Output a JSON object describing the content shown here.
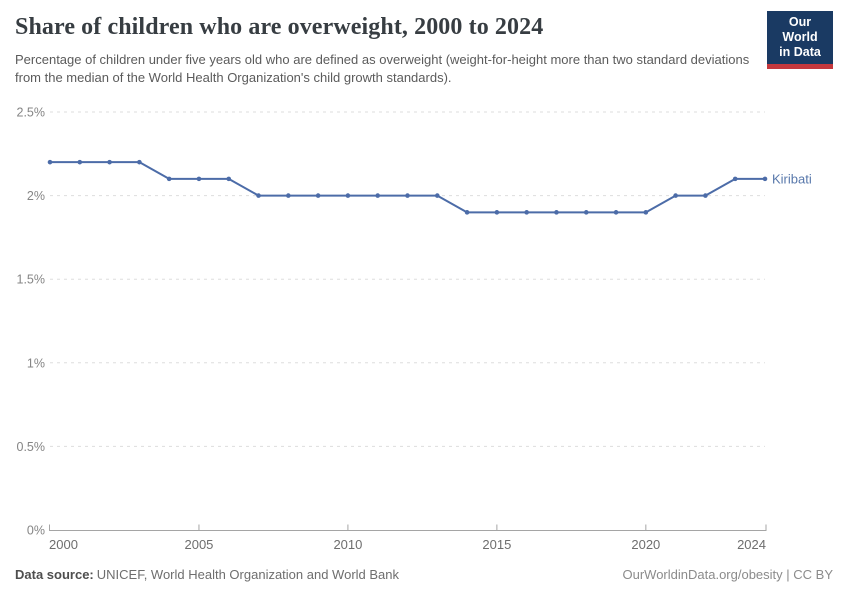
{
  "header": {
    "title": "Share of children who are overweight, 2000 to 2024",
    "subtitle": "Percentage of children under five years old who are defined as overweight (weight-for-height more than two standard deviations from the median of the World Health Organization's child growth standards).",
    "logo": {
      "line1": "Our World",
      "line2": "in Data"
    }
  },
  "chart_data": {
    "type": "line",
    "title": "Share of children who are overweight, 2000 to 2024",
    "xlabel": "",
    "ylabel": "",
    "x": [
      2000,
      2001,
      2002,
      2003,
      2004,
      2005,
      2006,
      2007,
      2008,
      2009,
      2010,
      2011,
      2012,
      2013,
      2014,
      2015,
      2016,
      2017,
      2018,
      2019,
      2020,
      2021,
      2022,
      2023,
      2024
    ],
    "series": [
      {
        "name": "Kiribati",
        "color": "#4c6ca8",
        "values": [
          2.2,
          2.2,
          2.2,
          2.2,
          2.1,
          2.1,
          2.1,
          2.0,
          2.0,
          2.0,
          2.0,
          2.0,
          2.0,
          2.0,
          1.9,
          1.9,
          1.9,
          1.9,
          1.9,
          1.9,
          1.9,
          2.0,
          2.0,
          2.1,
          2.1
        ]
      }
    ],
    "xlim": [
      2000,
      2024
    ],
    "ylim": [
      0,
      2.5
    ],
    "x_ticks": [
      {
        "v": 2000,
        "label": "2000"
      },
      {
        "v": 2005,
        "label": "2005"
      },
      {
        "v": 2010,
        "label": "2010"
      },
      {
        "v": 2015,
        "label": "2015"
      },
      {
        "v": 2020,
        "label": "2020"
      },
      {
        "v": 2024,
        "label": "2024"
      }
    ],
    "y_ticks": [
      {
        "v": 0,
        "label": "0%"
      },
      {
        "v": 0.5,
        "label": "0.5%"
      },
      {
        "v": 1,
        "label": "1%"
      },
      {
        "v": 1.5,
        "label": "1.5%"
      },
      {
        "v": 2,
        "label": "2%"
      },
      {
        "v": 2.5,
        "label": "2.5%"
      }
    ],
    "grid": "horizontal-dashed",
    "legend_position": "line-end-label"
  },
  "colors": {
    "line": "#4c6ca8",
    "gridline": "#dddddd",
    "axis": "#a5a5a5",
    "y_tick_label": "#858585",
    "x_tick_label": "#6e6e6e",
    "series_label": "#5878ab"
  },
  "footer": {
    "source_label": "Data source:",
    "source_text": "UNICEF, World Health Organization and World Bank",
    "attribution": "OurWorldinData.org/obesity | CC BY"
  }
}
